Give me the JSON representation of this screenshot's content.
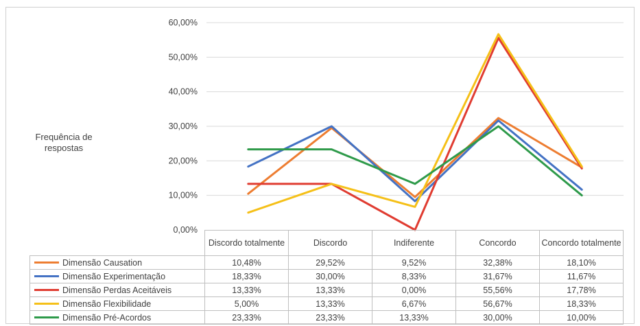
{
  "chart_data": {
    "type": "line",
    "ylabel": "Frequência de respostas",
    "ylim": [
      0,
      60
    ],
    "yticks": [
      "0,00%",
      "10,00%",
      "20,00%",
      "30,00%",
      "40,00%",
      "50,00%",
      "60,00%"
    ],
    "grid": true,
    "legend": "data-table-below",
    "categories": [
      "Discordo totalmente",
      "Discordo",
      "Indiferente",
      "Concordo",
      "Concordo totalmente"
    ],
    "series": [
      {
        "name": "Dimensão Causation",
        "color": "#ED7D31",
        "values": [
          10.48,
          29.52,
          9.52,
          32.38,
          18.1
        ],
        "labels": [
          "10,48%",
          "29,52%",
          "9,52%",
          "32,38%",
          "18,10%"
        ]
      },
      {
        "name": "Dimensão Experimentação",
        "color": "#4472C4",
        "values": [
          18.33,
          30.0,
          8.33,
          31.67,
          11.67
        ],
        "labels": [
          "18,33%",
          "30,00%",
          "8,33%",
          "31,67%",
          "11,67%"
        ]
      },
      {
        "name": "Dimensão Perdas Aceitáveis",
        "color": "#E03C31",
        "values": [
          13.33,
          13.33,
          0.0,
          55.56,
          17.78
        ],
        "labels": [
          "13,33%",
          "13,33%",
          "0,00%",
          "55,56%",
          "17,78%"
        ]
      },
      {
        "name": "Dimensão Flexibilidade",
        "color": "#F5C018",
        "values": [
          5.0,
          13.33,
          6.67,
          56.67,
          18.33
        ],
        "labels": [
          "5,00%",
          "13,33%",
          "6,67%",
          "56,67%",
          "18,33%"
        ]
      },
      {
        "name": "Dimensão Pré-Acordos",
        "color": "#2E9A4A",
        "values": [
          23.33,
          23.33,
          13.33,
          30.0,
          10.0
        ],
        "labels": [
          "23,33%",
          "23,33%",
          "13,33%",
          "30,00%",
          "10,00%"
        ]
      }
    ]
  }
}
